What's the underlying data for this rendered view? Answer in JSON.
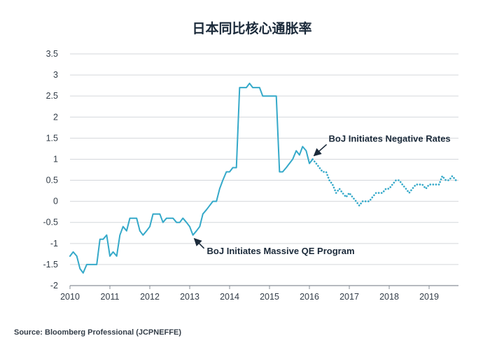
{
  "chart_data": {
    "type": "line",
    "title": "日本同比核心通胀率",
    "source": "Source: Bloomberg Professional (JCPNEFFE)",
    "xlabel": "",
    "ylabel": "",
    "ylim": [
      -2,
      3.5
    ],
    "xlim": [
      2010,
      2019.75
    ],
    "yticks": [
      3.5,
      3,
      2.5,
      2,
      1.5,
      1,
      0.5,
      0,
      -0.5,
      -1,
      -1.5,
      -2
    ],
    "ytick_labels": [
      "3.5",
      "3",
      "2.5",
      "2",
      "1.5",
      "1",
      "0.5",
      "0",
      "-0.5",
      "-1",
      "-1.5",
      "-2"
    ],
    "xticks": [
      2010,
      2011,
      2012,
      2013,
      2014,
      2015,
      2016,
      2017,
      2018,
      2019
    ],
    "xtick_labels": [
      "2010",
      "2011",
      "2012",
      "2013",
      "2014",
      "2015",
      "2016",
      "2017",
      "2018",
      "2019"
    ],
    "grid": true,
    "line_color": "#35a9c9",
    "axis_color": "#8a9199",
    "grid_color": "#d4d7db",
    "series": [
      {
        "style": "solid",
        "x": [
          2010.0,
          2010.08,
          2010.17,
          2010.25,
          2010.33,
          2010.42,
          2010.5,
          2010.58,
          2010.67,
          2010.75,
          2010.83,
          2010.92,
          2011.0,
          2011.08,
          2011.17,
          2011.25,
          2011.33,
          2011.42,
          2011.5,
          2011.58,
          2011.67,
          2011.75,
          2011.83,
          2011.92,
          2012.0,
          2012.08,
          2012.17,
          2012.25,
          2012.33,
          2012.42,
          2012.5,
          2012.58,
          2012.67,
          2012.75,
          2012.83,
          2012.92,
          2013.0,
          2013.08,
          2013.17,
          2013.25,
          2013.33,
          2013.42,
          2013.5,
          2013.58,
          2013.67,
          2013.75,
          2013.83,
          2013.92,
          2014.0,
          2014.08,
          2014.17,
          2014.25,
          2014.33,
          2014.42,
          2014.5,
          2014.58,
          2014.67,
          2014.75,
          2014.83,
          2014.92,
          2015.0,
          2015.08,
          2015.17,
          2015.25,
          2015.33,
          2015.42,
          2015.5,
          2015.58,
          2015.67,
          2015.75,
          2015.83,
          2015.92,
          2016.0,
          2016.08
        ],
        "y": [
          -1.3,
          -1.2,
          -1.3,
          -1.6,
          -1.7,
          -1.5,
          -1.5,
          -1.5,
          -1.5,
          -0.9,
          -0.9,
          -0.8,
          -1.3,
          -1.2,
          -1.3,
          -0.8,
          -0.6,
          -0.7,
          -0.4,
          -0.4,
          -0.4,
          -0.7,
          -0.8,
          -0.7,
          -0.6,
          -0.3,
          -0.3,
          -0.3,
          -0.5,
          -0.4,
          -0.4,
          -0.4,
          -0.5,
          -0.5,
          -0.4,
          -0.5,
          -0.6,
          -0.8,
          -0.7,
          -0.6,
          -0.3,
          -0.2,
          -0.1,
          0.0,
          0.0,
          0.3,
          0.5,
          0.7,
          0.7,
          0.8,
          0.8,
          2.7,
          2.7,
          2.7,
          2.8,
          2.7,
          2.7,
          2.7,
          2.5,
          2.5,
          2.5,
          2.5,
          2.5,
          0.7,
          0.7,
          0.8,
          0.9,
          1.0,
          1.2,
          1.1,
          1.3,
          1.2,
          0.9,
          1.0
        ]
      },
      {
        "style": "dotted",
        "x": [
          2016.08,
          2016.17,
          2016.25,
          2016.33,
          2016.42,
          2016.5,
          2016.58,
          2016.67,
          2016.75,
          2016.83,
          2016.92,
          2017.0,
          2017.08,
          2017.17,
          2017.25,
          2017.33,
          2017.42,
          2017.5,
          2017.58,
          2017.67,
          2017.75,
          2017.83,
          2017.92,
          2018.0,
          2018.08,
          2018.17,
          2018.25,
          2018.33,
          2018.42,
          2018.5,
          2018.58,
          2018.67,
          2018.75,
          2018.83,
          2018.92,
          2019.0,
          2019.08,
          2019.17,
          2019.25,
          2019.33,
          2019.42,
          2019.5,
          2019.58,
          2019.67
        ],
        "y": [
          1.0,
          0.9,
          0.8,
          0.7,
          0.7,
          0.5,
          0.4,
          0.2,
          0.3,
          0.2,
          0.1,
          0.2,
          0.1,
          0.0,
          -0.1,
          0.0,
          0.0,
          0.0,
          0.1,
          0.2,
          0.2,
          0.2,
          0.3,
          0.3,
          0.4,
          0.5,
          0.5,
          0.4,
          0.3,
          0.2,
          0.3,
          0.4,
          0.4,
          0.4,
          0.3,
          0.4,
          0.4,
          0.4,
          0.4,
          0.6,
          0.5,
          0.5,
          0.6,
          0.5
        ]
      }
    ],
    "annotations": [
      {
        "text": "BoJ Initiates Negative Rates",
        "x": 2016.08,
        "y": 1.05,
        "text_side": "right"
      },
      {
        "text": "BoJ Initiates Massive QE Program",
        "x": 2013.08,
        "y": -0.85,
        "text_side": "below-right"
      }
    ]
  }
}
